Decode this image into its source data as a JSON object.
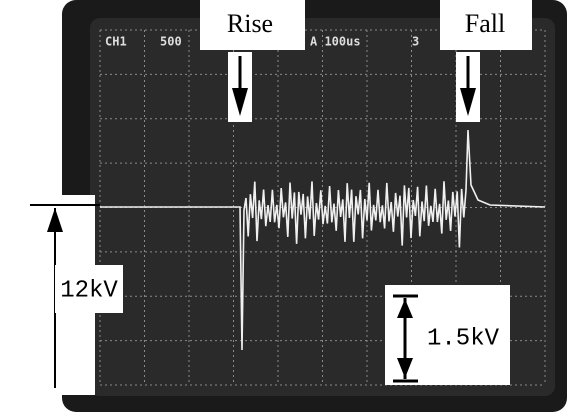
{
  "screen": {
    "header": [
      "CH1",
      "500",
      "A 100us",
      "3"
    ]
  },
  "annotations": {
    "rise": "Rise",
    "fall": "Fall",
    "amplitude_total": "12kV",
    "amplitude_ripple": "1.5kV"
  }
}
